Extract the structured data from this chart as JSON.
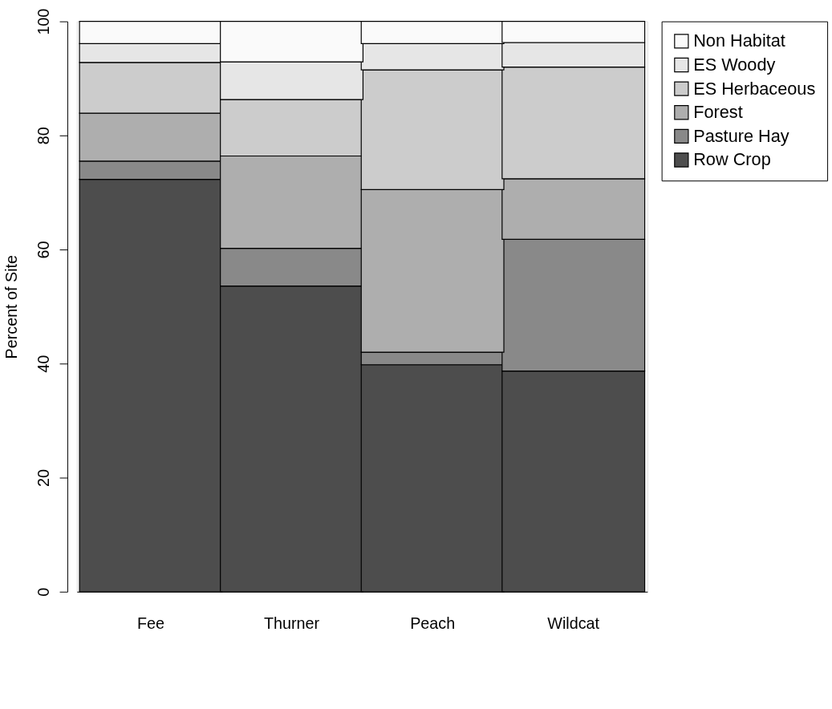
{
  "chart_data": {
    "type": "bar",
    "stacked": true,
    "ylabel": "Percent of Site",
    "categories": [
      "Fee",
      "Thurner",
      "Peach",
      "Wildcat"
    ],
    "series": [
      {
        "name": "Row Crop",
        "color": "#4d4d4d",
        "values": [
          72.3,
          53.6,
          39.8,
          38.7
        ]
      },
      {
        "name": "Pasture Hay",
        "color": "#898989",
        "values": [
          3.2,
          6.6,
          2.2,
          23.1
        ]
      },
      {
        "name": "Forest",
        "color": "#aeaeae",
        "values": [
          8.4,
          16.2,
          28.5,
          10.6
        ]
      },
      {
        "name": "ES Herbaceous",
        "color": "#cccccc",
        "values": [
          8.9,
          9.9,
          21.0,
          19.6
        ]
      },
      {
        "name": "ES Woody",
        "color": "#e6e6e6",
        "values": [
          3.3,
          6.6,
          4.6,
          4.3
        ]
      },
      {
        "name": "Non Habitat",
        "color": "#fafafa",
        "values": [
          3.9,
          7.1,
          3.9,
          3.7
        ]
      }
    ],
    "ylim": [
      0,
      100
    ],
    "yticks": [
      0,
      20,
      40,
      60,
      80,
      100
    ],
    "grid": false,
    "legend": "right"
  }
}
